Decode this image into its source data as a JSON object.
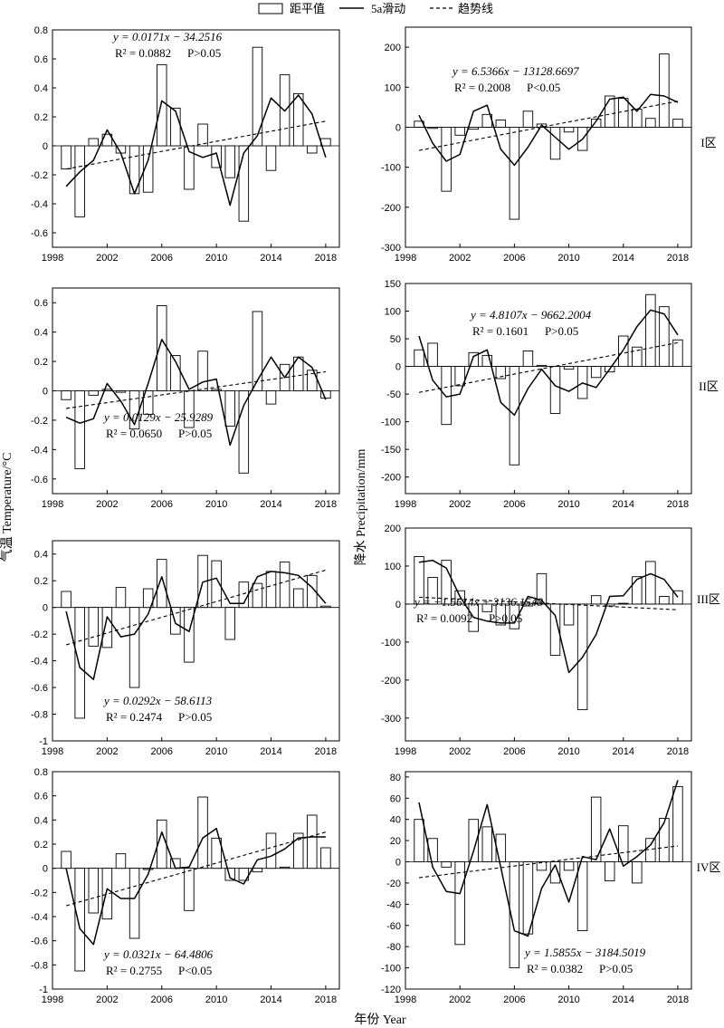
{
  "legend": {
    "bar_label": "距平值",
    "moving_label": "5a滑动",
    "trend_label": "趋势线"
  },
  "labels": {
    "xlabel": "年份 Year",
    "ylabel_left": "气温 Temperature/°C",
    "ylabel_right": "降水 Precipitation/mm"
  },
  "regions": [
    "I区",
    "II区",
    "III区",
    "IV区"
  ],
  "chart_data": [
    {
      "type": "bar",
      "region": "I区",
      "variable": "temperature",
      "ylim": [
        -0.7,
        0.8
      ],
      "yticks": [
        -0.6,
        -0.4,
        -0.2,
        0,
        0.2,
        0.4,
        0.6,
        0.8
      ],
      "xlim": [
        1998,
        2019
      ],
      "xticks": [
        1998,
        2002,
        2006,
        2010,
        2014,
        2018
      ],
      "years": [
        1999,
        2000,
        2001,
        2002,
        2003,
        2004,
        2005,
        2006,
        2007,
        2008,
        2009,
        2010,
        2011,
        2012,
        2013,
        2014,
        2015,
        2016,
        2017,
        2018
      ],
      "anomaly": [
        -0.16,
        -0.49,
        0.05,
        0.08,
        -0.05,
        -0.33,
        -0.32,
        0.56,
        0.26,
        -0.3,
        0.15,
        -0.15,
        -0.22,
        -0.52,
        0.68,
        -0.17,
        0.49,
        0.36,
        -0.05,
        0.05
      ],
      "moving_avg": [
        -0.28,
        -0.18,
        -0.1,
        0.11,
        -0.05,
        -0.33,
        -0.1,
        0.31,
        0.24,
        -0.04,
        -0.08,
        -0.05,
        -0.41,
        -0.05,
        0.07,
        0.33,
        0.24,
        0.35,
        0.22,
        -0.08
      ],
      "trend_end": [
        -0.16,
        0.17
      ],
      "eq_label": "y = 0.0171x − 34.2516",
      "r2_label": "R² = 0.0882",
      "p_label": "P>0.05"
    },
    {
      "type": "bar",
      "region": "I区",
      "variable": "precipitation",
      "ylim": [
        -300,
        250
      ],
      "yticks": [
        -300,
        -200,
        -100,
        0,
        100,
        200
      ],
      "xlim": [
        1998,
        2019
      ],
      "xticks": [
        1998,
        2002,
        2006,
        2010,
        2014,
        2018
      ],
      "years": [
        1999,
        2000,
        2001,
        2002,
        2003,
        2004,
        2005,
        2006,
        2007,
        2008,
        2009,
        2010,
        2011,
        2012,
        2013,
        2014,
        2015,
        2016,
        2017,
        2018
      ],
      "anomaly": [
        15,
        -3,
        -160,
        -20,
        -5,
        32,
        18,
        -230,
        40,
        8,
        -80,
        -12,
        -58,
        20,
        78,
        72,
        45,
        22,
        183,
        20
      ],
      "moving_avg": [
        30,
        -40,
        -85,
        -68,
        40,
        55,
        -55,
        -95,
        -50,
        5,
        -25,
        -55,
        -30,
        15,
        70,
        75,
        40,
        82,
        78,
        62
      ],
      "trend_end": [
        -58,
        65
      ],
      "eq_label": "y = 6.5366x − 13128.6697",
      "r2_label": "R² = 0.2008",
      "p_label": "P<0.05"
    },
    {
      "type": "bar",
      "region": "II区",
      "variable": "temperature",
      "ylim": [
        -0.7,
        0.7
      ],
      "yticks": [
        -0.6,
        -0.4,
        -0.2,
        0,
        0.2,
        0.4,
        0.6
      ],
      "xlim": [
        1998,
        2019
      ],
      "xticks": [
        1998,
        2002,
        2006,
        2010,
        2014,
        2018
      ],
      "years": [
        1999,
        2000,
        2001,
        2002,
        2003,
        2004,
        2005,
        2006,
        2007,
        2008,
        2009,
        2010,
        2011,
        2012,
        2013,
        2014,
        2015,
        2016,
        2017,
        2018
      ],
      "anomaly": [
        -0.06,
        -0.53,
        -0.03,
        0.01,
        -0.01,
        -0.26,
        -0.16,
        0.58,
        0.24,
        -0.25,
        0.27,
        0.01,
        -0.24,
        -0.56,
        0.54,
        -0.09,
        0.18,
        0.23,
        0.14,
        -0.05
      ],
      "moving_avg": [
        -0.18,
        -0.22,
        -0.19,
        0.05,
        -0.07,
        -0.23,
        0.05,
        0.35,
        0.2,
        0.01,
        0.06,
        0.08,
        -0.37,
        -0.1,
        0.07,
        0.23,
        0.09,
        0.23,
        0.16,
        -0.06
      ],
      "trend_end": [
        -0.12,
        0.13
      ],
      "eq_label": "y = 0.0129x − 25.9289",
      "r2_label": "R² = 0.0650",
      "p_label": "P>0.05"
    },
    {
      "type": "bar",
      "region": "II区",
      "variable": "precipitation",
      "ylim": [
        -230,
        150
      ],
      "yticks": [
        -200,
        -150,
        -100,
        -50,
        0,
        50,
        100,
        150
      ],
      "xlim": [
        1998,
        2019
      ],
      "xticks": [
        1998,
        2002,
        2006,
        2010,
        2014,
        2018
      ],
      "years": [
        1999,
        2000,
        2001,
        2002,
        2003,
        2004,
        2005,
        2006,
        2007,
        2008,
        2009,
        2010,
        2011,
        2012,
        2013,
        2014,
        2015,
        2016,
        2017,
        2018
      ],
      "anomaly": [
        30,
        42,
        -105,
        -35,
        25,
        20,
        -22,
        -178,
        28,
        2,
        -85,
        -5,
        -58,
        -20,
        -10,
        55,
        35,
        130,
        108,
        48
      ],
      "moving_avg": [
        55,
        -25,
        -55,
        -50,
        18,
        30,
        -65,
        -88,
        -40,
        -5,
        -35,
        -45,
        -30,
        -38,
        -5,
        30,
        72,
        102,
        95,
        57
      ],
      "trend_end": [
        -47,
        43
      ],
      "eq_label": "y = 4.8107x − 9662.2004",
      "r2_label": "R² = 0.1601",
      "p_label": "P>0.05"
    },
    {
      "type": "bar",
      "region": "III区",
      "variable": "temperature",
      "ylim": [
        -1.0,
        0.5
      ],
      "yticks": [
        -1.0,
        -0.8,
        -0.6,
        -0.4,
        -0.2,
        0,
        0.2,
        0.4
      ],
      "xlim": [
        1998,
        2019
      ],
      "xticks": [
        1998,
        2002,
        2006,
        2010,
        2014,
        2018
      ],
      "years": [
        1999,
        2000,
        2001,
        2002,
        2003,
        2004,
        2005,
        2006,
        2007,
        2008,
        2009,
        2010,
        2011,
        2012,
        2013,
        2014,
        2015,
        2016,
        2017,
        2018
      ],
      "anomaly": [
        0.12,
        -0.83,
        -0.29,
        -0.3,
        0.15,
        -0.6,
        0.14,
        0.36,
        -0.2,
        -0.41,
        0.39,
        0.35,
        -0.24,
        0.19,
        0.18,
        0.27,
        0.34,
        0.14,
        0.24,
        0.01
      ],
      "moving_avg": [
        -0.03,
        -0.45,
        -0.54,
        -0.07,
        -0.22,
        -0.2,
        -0.05,
        0.23,
        -0.12,
        -0.18,
        0.19,
        0.22,
        0.03,
        0.03,
        0.23,
        0.27,
        0.26,
        0.24,
        0.15,
        0.03
      ],
      "trend_end": [
        -0.28,
        0.28
      ],
      "eq_label": "y = 0.0292x − 58.6113",
      "r2_label": "R² = 0.2474",
      "p_label": "P>0.05"
    },
    {
      "type": "bar",
      "region": "III区",
      "variable": "precipitation",
      "ylim": [
        -360,
        200
      ],
      "yticks": [
        -300,
        -200,
        -100,
        0,
        100,
        200
      ],
      "xlim": [
        1998,
        2019
      ],
      "xticks": [
        1998,
        2002,
        2006,
        2010,
        2014,
        2018
      ],
      "years": [
        1999,
        2000,
        2001,
        2002,
        2003,
        2004,
        2005,
        2006,
        2007,
        2008,
        2009,
        2010,
        2011,
        2012,
        2013,
        2014,
        2015,
        2016,
        2017,
        2018
      ],
      "anomaly": [
        125,
        70,
        115,
        35,
        -72,
        -20,
        -55,
        -65,
        -5,
        80,
        -135,
        -55,
        -278,
        22,
        -5,
        2,
        72,
        112,
        20,
        35
      ],
      "moving_avg": [
        110,
        115,
        95,
        20,
        -35,
        -45,
        -50,
        -50,
        20,
        10,
        -30,
        -180,
        -140,
        -80,
        20,
        22,
        65,
        80,
        65,
        18
      ],
      "trend_end": [
        18,
        -15
      ],
      "eq_label": "y = −1.5614x + 3136.1548",
      "r2_label": "R² = 0.0092",
      "p_label": "P>0.05"
    },
    {
      "type": "bar",
      "region": "IV区",
      "variable": "temperature",
      "ylim": [
        -1.0,
        0.8
      ],
      "yticks": [
        -1.0,
        -0.8,
        -0.6,
        -0.4,
        -0.2,
        0,
        0.2,
        0.4,
        0.6,
        0.8
      ],
      "xlim": [
        1998,
        2019
      ],
      "xticks": [
        1998,
        2002,
        2006,
        2010,
        2014,
        2018
      ],
      "years": [
        1999,
        2000,
        2001,
        2002,
        2003,
        2004,
        2005,
        2006,
        2007,
        2008,
        2009,
        2010,
        2011,
        2012,
        2013,
        2014,
        2015,
        2016,
        2017,
        2018
      ],
      "anomaly": [
        0.14,
        -0.85,
        -0.37,
        -0.42,
        0.12,
        -0.58,
        -0.01,
        0.4,
        0.08,
        -0.35,
        0.59,
        0.25,
        -0.1,
        -0.1,
        -0.03,
        0.29,
        0.01,
        0.29,
        0.44,
        0.17
      ],
      "moving_avg": [
        0.0,
        -0.5,
        -0.63,
        -0.17,
        -0.25,
        -0.25,
        -0.05,
        0.3,
        0.0,
        0.01,
        0.25,
        0.33,
        -0.08,
        -0.13,
        0.07,
        0.1,
        0.16,
        0.25,
        0.26,
        0.26
      ],
      "trend_end": [
        -0.31,
        0.3
      ],
      "eq_label": "y = 0.0321x − 64.4806",
      "r2_label": "R² = 0.2755",
      "p_label": "P<0.05"
    },
    {
      "type": "bar",
      "region": "IV区",
      "variable": "precipitation",
      "ylim": [
        -120,
        85
      ],
      "yticks": [
        -120,
        -100,
        -80,
        -60,
        -40,
        -20,
        0,
        20,
        40,
        60,
        80
      ],
      "xlim": [
        1998,
        2019
      ],
      "xticks": [
        1998,
        2002,
        2006,
        2010,
        2014,
        2018
      ],
      "years": [
        1999,
        2000,
        2001,
        2002,
        2003,
        2004,
        2005,
        2006,
        2007,
        2008,
        2009,
        2010,
        2011,
        2012,
        2013,
        2014,
        2015,
        2016,
        2017,
        2018
      ],
      "anomaly": [
        40,
        22,
        -5,
        -78,
        40,
        33,
        26,
        -100,
        -68,
        -8,
        -20,
        -8,
        -65,
        61,
        -18,
        34,
        -20,
        22,
        41,
        71
      ],
      "moving_avg": [
        56,
        -5,
        -28,
        -30,
        10,
        54,
        -5,
        -65,
        -70,
        -25,
        -3,
        -38,
        5,
        2,
        31,
        -4,
        5,
        16,
        37,
        77
      ],
      "trend_end": [
        -15,
        15
      ],
      "eq_label": "y = 1.5855x − 3184.5019",
      "r2_label": "R² = 0.0382",
      "p_label": "P>0.05"
    }
  ]
}
